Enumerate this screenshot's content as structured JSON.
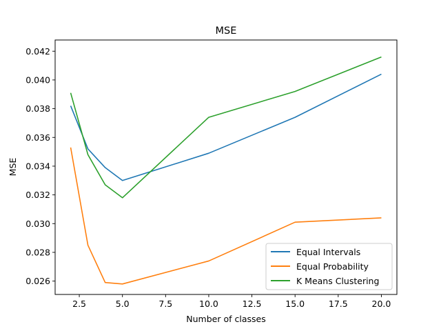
{
  "chart_data": {
    "type": "line",
    "title": "MSE",
    "xlabel": "Number of classes",
    "ylabel": "MSE",
    "x": [
      2,
      3,
      4,
      5,
      10,
      15,
      20
    ],
    "xlim": [
      1.1,
      20.9
    ],
    "ylim": [
      0.02507,
      0.04278
    ],
    "xticks": [
      2.5,
      5.0,
      7.5,
      10.0,
      12.5,
      15.0,
      17.5,
      20.0
    ],
    "xtick_labels": [
      "2.5",
      "5.0",
      "7.5",
      "10.0",
      "12.5",
      "15.0",
      "17.5",
      "20.0"
    ],
    "yticks": [
      0.026,
      0.028,
      0.03,
      0.032,
      0.034,
      0.036,
      0.038,
      0.04,
      0.042
    ],
    "ytick_labels": [
      "0.026",
      "0.028",
      "0.030",
      "0.032",
      "0.034",
      "0.036",
      "0.038",
      "0.040",
      "0.042"
    ],
    "grid": false,
    "legend_position": "lower-right",
    "series": [
      {
        "name": "Equal Intervals",
        "color": "#1f77b4",
        "values": [
          0.0382,
          0.0352,
          0.0339,
          0.033,
          0.0349,
          0.0374,
          0.0404
        ]
      },
      {
        "name": "Equal Probability",
        "color": "#ff7f0e",
        "values": [
          0.0353,
          0.0285,
          0.0259,
          0.0258,
          0.0274,
          0.0301,
          0.0304
        ]
      },
      {
        "name": "K Means Clustering",
        "color": "#2ca02c",
        "values": [
          0.0391,
          0.0348,
          0.0327,
          0.0318,
          0.0374,
          0.0392,
          0.0416
        ]
      }
    ]
  }
}
